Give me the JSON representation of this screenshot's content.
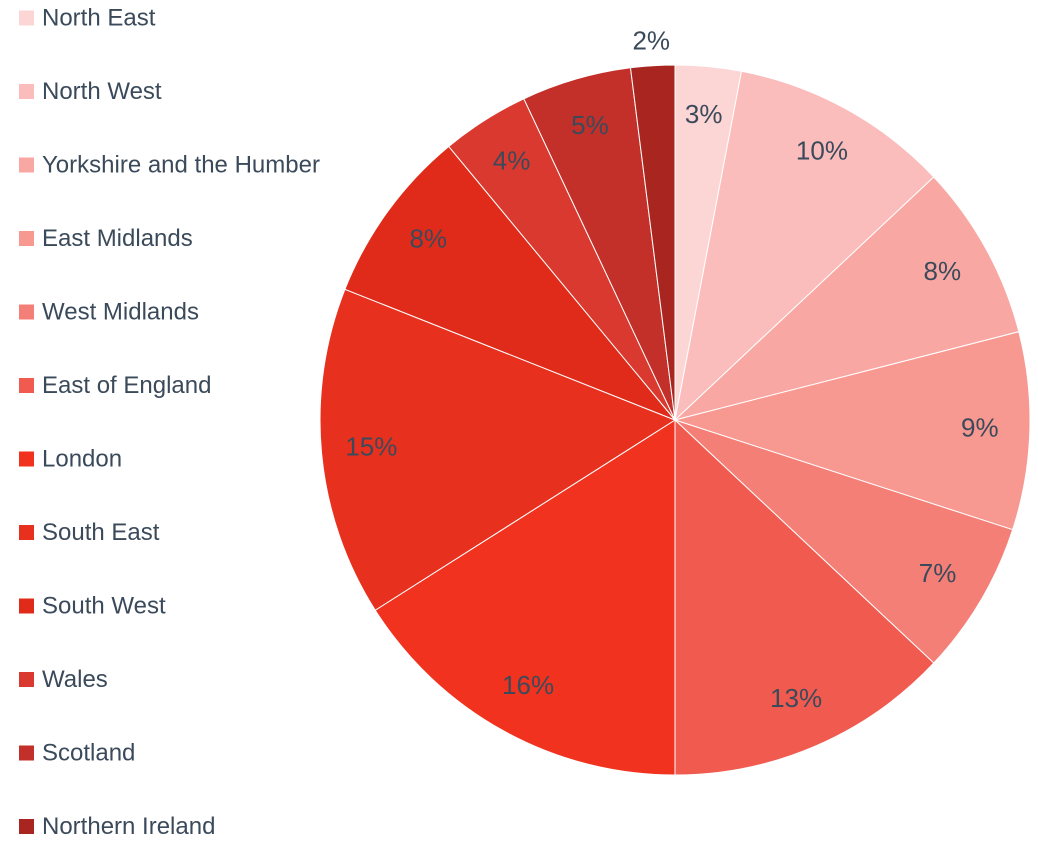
{
  "chart_data": {
    "type": "pie",
    "categories": [
      "North East",
      "North West",
      "Yorkshire and the Humber",
      "East Midlands",
      "West Midlands",
      "East of England",
      "London",
      "South East",
      "South West",
      "Wales",
      "Scotland",
      "Northern Ireland"
    ],
    "values": [
      3,
      10,
      8,
      9,
      7,
      13,
      16,
      15,
      8,
      4,
      5,
      2
    ],
    "value_labels": [
      "3%",
      "10%",
      "8%",
      "9%",
      "7%",
      "13%",
      "16%",
      "15%",
      "8%",
      "4%",
      "5%",
      "2%"
    ],
    "colors": [
      "#fcd5d5",
      "#fbbcbc",
      "#f9a7a3",
      "#f79891",
      "#f47f77",
      "#f05a4f",
      "#f0321f",
      "#e8301e",
      "#e02b1a",
      "#d9392e",
      "#c3302a",
      "#a8261f"
    ],
    "legend": "left"
  }
}
